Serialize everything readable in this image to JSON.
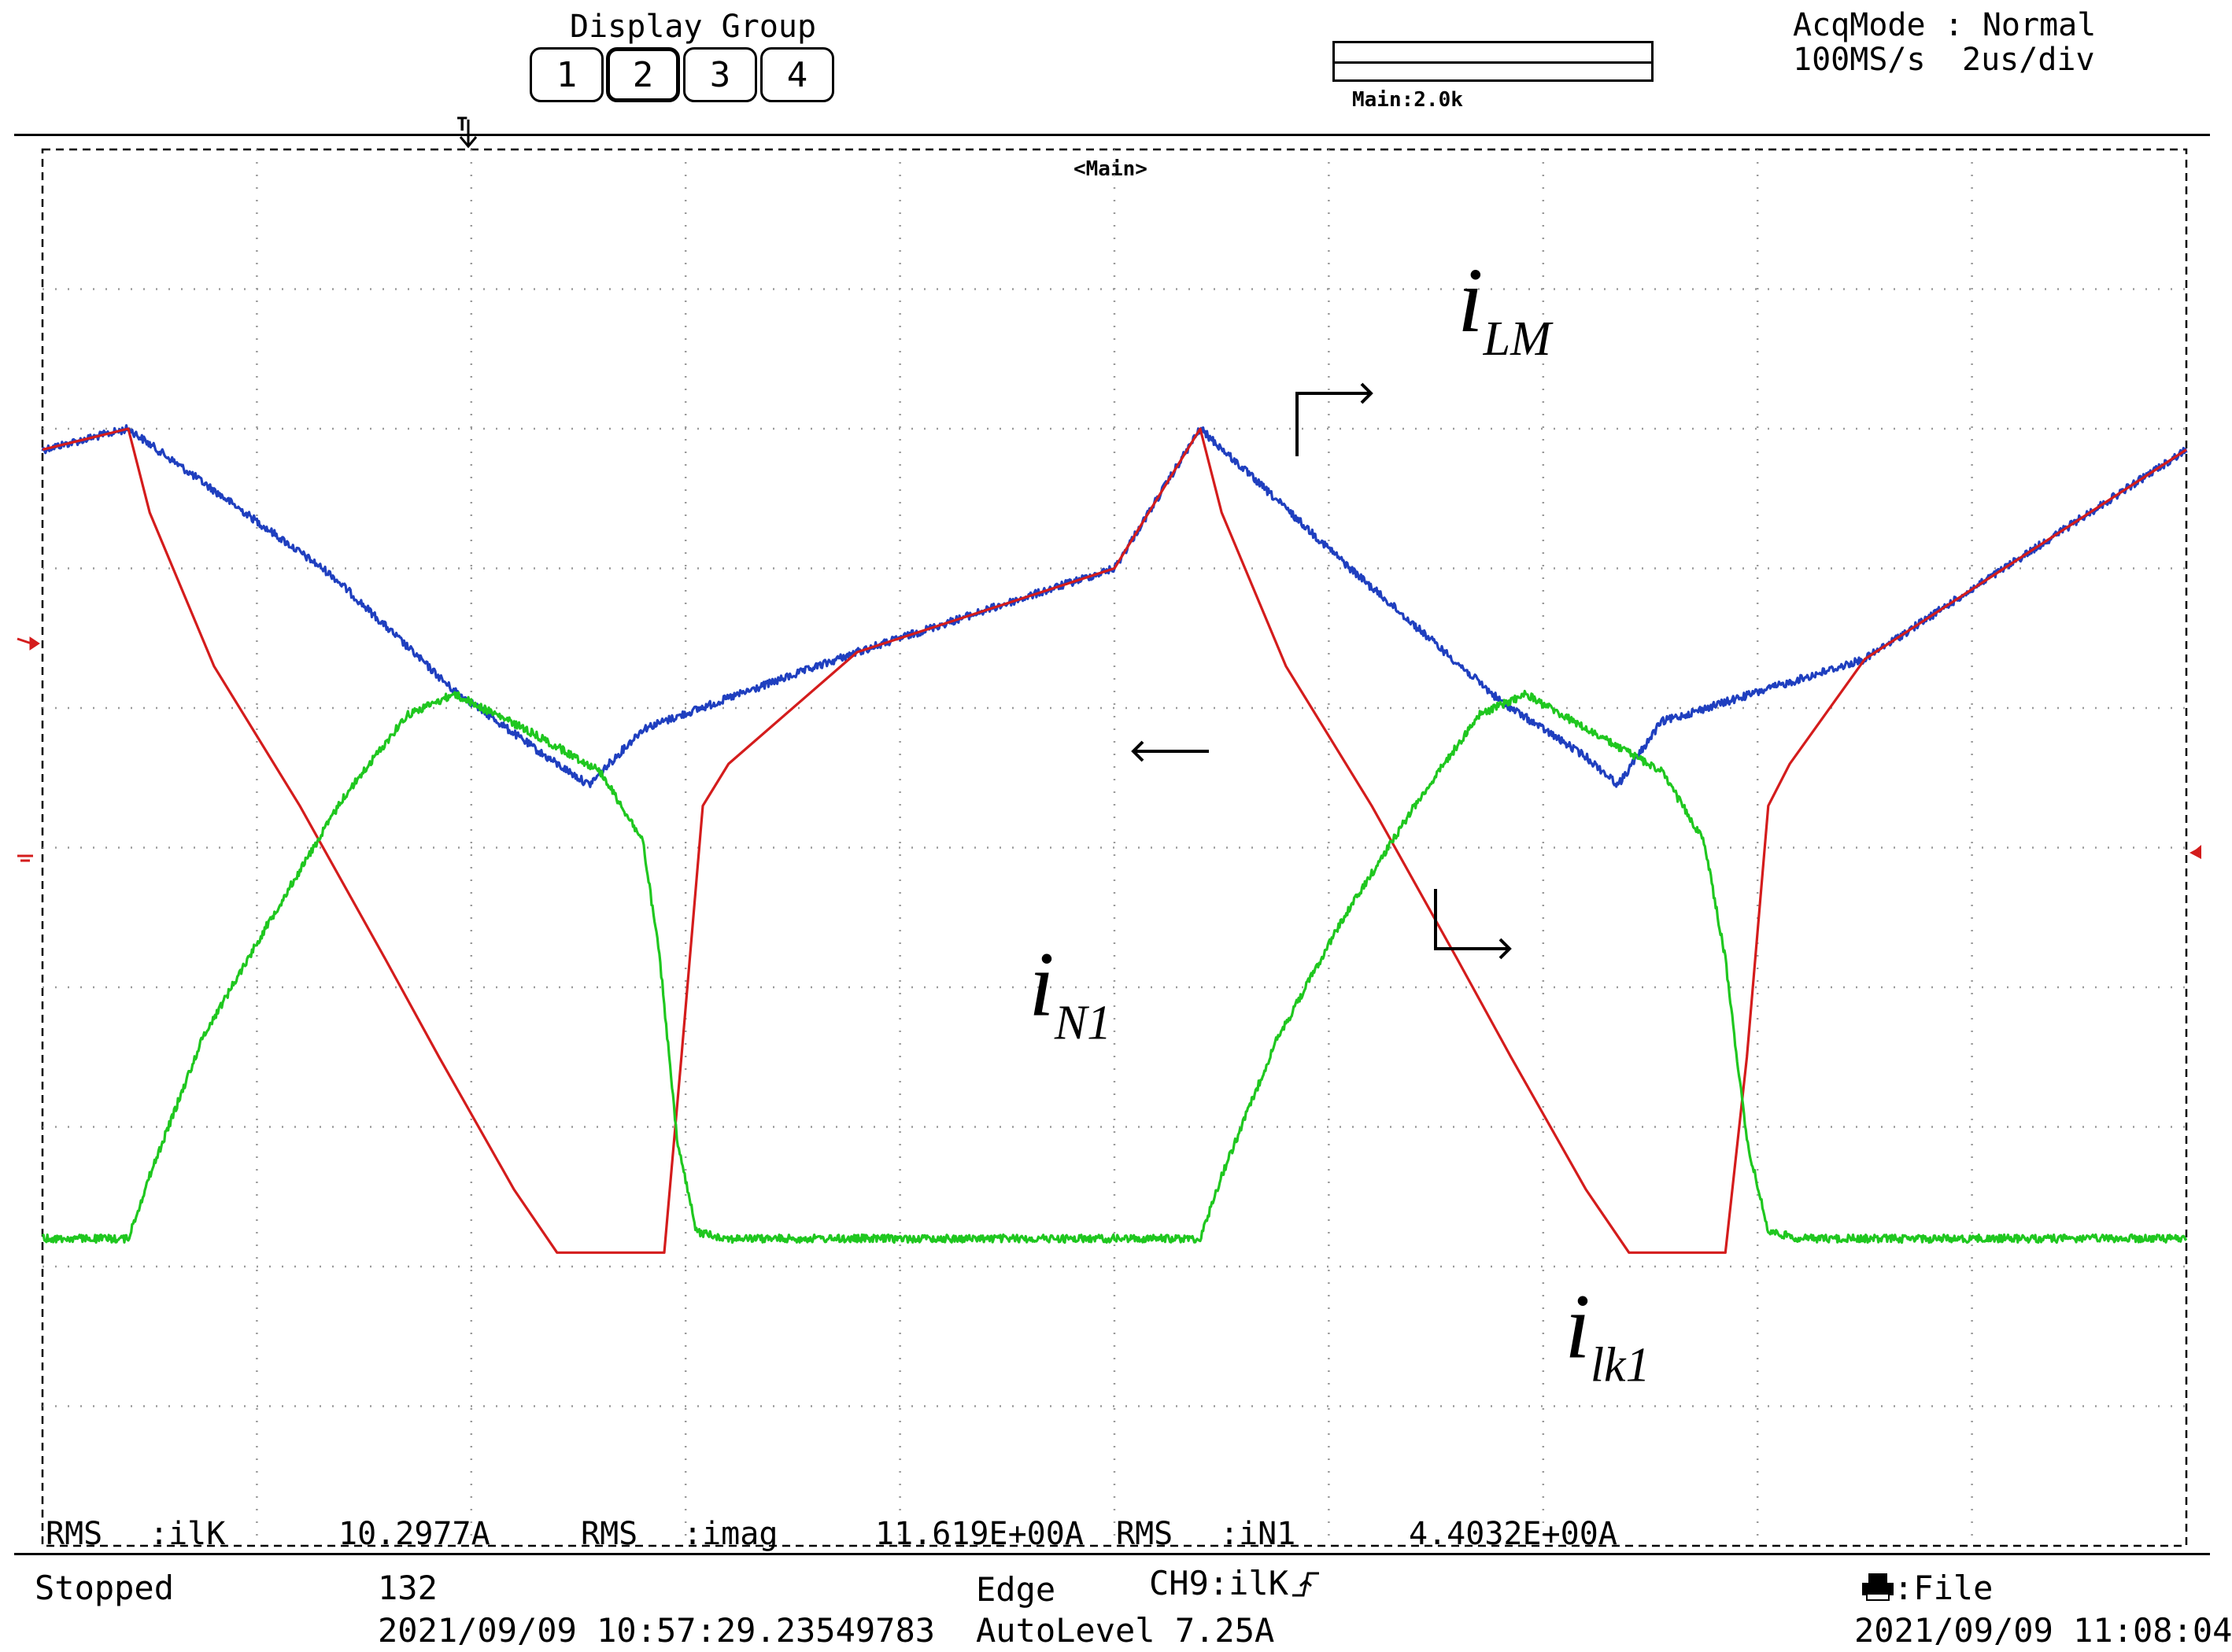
{
  "display_group": {
    "label": "Display Group",
    "buttons": [
      "1",
      "2",
      "3",
      "4"
    ],
    "active": "2"
  },
  "acquisition": {
    "mode_label": "AcqMode : Normal",
    "sample_rate": "100MS/s",
    "timebase": "2us/div"
  },
  "zoom": {
    "label": "Main:2.0k"
  },
  "screen": {
    "window_label": "<Main>",
    "trigger_marker": "T"
  },
  "measurements": [
    {
      "type": "RMS",
      "channel": ":ilK",
      "value": "10.2977A"
    },
    {
      "type": "RMS",
      "channel": ":imag",
      "value": "11.619E+00A"
    },
    {
      "type": "RMS",
      "channel": ":iN1",
      "value": "4.4032E+00A"
    }
  ],
  "status_bar": {
    "state": "Stopped",
    "count": "132",
    "acq_timestamp": "2021/09/09 10:57:29.23549783",
    "trigger_type": "Edge",
    "trigger_source": "CH9:ilK",
    "trigger_level": "AutoLevel 7.25A",
    "save_target": ":File",
    "clock": "2021/09/09 11:08:04"
  },
  "chart_data": {
    "type": "line",
    "title": "",
    "xlabel": "",
    "ylabel": "",
    "x_divisions": 10,
    "y_divisions": 10,
    "xlim": [
      0,
      10
    ],
    "ylim": [
      0,
      10
    ],
    "grid": true,
    "series": [
      {
        "name": "i_LM",
        "color": "#1f3fbf",
        "noise": true,
        "points": [
          [
            0,
            7.85
          ],
          [
            0.4,
            8.0
          ],
          [
            1.35,
            6.95
          ],
          [
            1.9,
            6.15
          ],
          [
            2.35,
            5.65
          ],
          [
            2.55,
            5.45
          ],
          [
            2.8,
            5.85
          ],
          [
            3.8,
            6.4
          ],
          [
            5.0,
            7.0
          ],
          [
            5.4,
            8.0
          ],
          [
            6.1,
            7.0
          ],
          [
            6.8,
            6.05
          ],
          [
            7.2,
            5.65
          ],
          [
            7.35,
            5.45
          ],
          [
            7.55,
            5.9
          ],
          [
            8.5,
            6.35
          ],
          [
            10,
            7.85
          ]
        ]
      },
      {
        "name": "i_lk1",
        "color": "#d41c1c",
        "noise": false,
        "points": [
          [
            0,
            7.85
          ],
          [
            0.4,
            8.0
          ],
          [
            0.5,
            7.4
          ],
          [
            0.8,
            6.3
          ],
          [
            1.2,
            5.3
          ],
          [
            1.6,
            4.2
          ],
          [
            1.85,
            3.5
          ],
          [
            2.2,
            2.55
          ],
          [
            2.4,
            2.1
          ],
          [
            2.9,
            2.1
          ],
          [
            2.98,
            3.5
          ],
          [
            3.08,
            5.3
          ],
          [
            3.2,
            5.6
          ],
          [
            3.8,
            6.4
          ],
          [
            5.0,
            7.0
          ],
          [
            5.4,
            8.0
          ],
          [
            5.5,
            7.4
          ],
          [
            5.8,
            6.3
          ],
          [
            6.2,
            5.3
          ],
          [
            6.6,
            4.2
          ],
          [
            6.85,
            3.5
          ],
          [
            7.2,
            2.55
          ],
          [
            7.4,
            2.1
          ],
          [
            7.85,
            2.1
          ],
          [
            7.95,
            3.5
          ],
          [
            8.05,
            5.3
          ],
          [
            8.15,
            5.6
          ],
          [
            8.5,
            6.35
          ],
          [
            10,
            7.85
          ]
        ]
      },
      {
        "name": "i_N1",
        "color": "#1fc71f",
        "noise": true,
        "points": [
          [
            0,
            2.2
          ],
          [
            0.4,
            2.2
          ],
          [
            0.5,
            2.65
          ],
          [
            0.75,
            3.65
          ],
          [
            1.05,
            4.45
          ],
          [
            1.4,
            5.35
          ],
          [
            1.7,
            5.95
          ],
          [
            1.92,
            6.1
          ],
          [
            2.25,
            5.85
          ],
          [
            2.6,
            5.55
          ],
          [
            2.8,
            5.05
          ],
          [
            2.88,
            4.2
          ],
          [
            2.96,
            2.9
          ],
          [
            3.05,
            2.25
          ],
          [
            3.2,
            2.2
          ],
          [
            5.4,
            2.2
          ],
          [
            5.5,
            2.65
          ],
          [
            5.75,
            3.6
          ],
          [
            6.05,
            4.45
          ],
          [
            6.4,
            5.3
          ],
          [
            6.7,
            5.95
          ],
          [
            6.92,
            6.1
          ],
          [
            7.2,
            5.85
          ],
          [
            7.55,
            5.55
          ],
          [
            7.75,
            5.05
          ],
          [
            7.85,
            4.2
          ],
          [
            7.95,
            2.9
          ],
          [
            8.05,
            2.25
          ],
          [
            8.2,
            2.2
          ],
          [
            10,
            2.2
          ]
        ]
      }
    ],
    "annotations": [
      {
        "base": "i",
        "sub": "LM",
        "x": 6.6,
        "y": 8.7
      },
      {
        "base": "i",
        "sub": "N1",
        "x": 4.6,
        "y": 3.8
      },
      {
        "base": "i",
        "sub": "lk1",
        "x": 7.1,
        "y": 1.35
      }
    ]
  }
}
